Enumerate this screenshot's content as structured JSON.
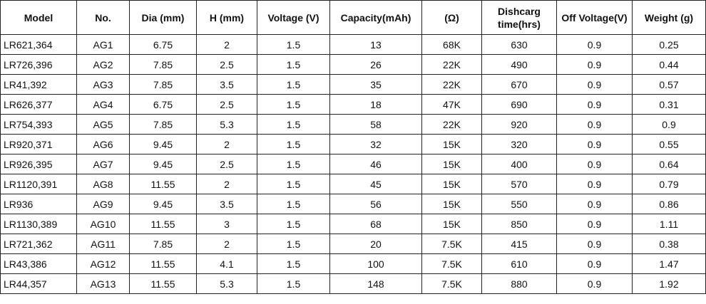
{
  "table": {
    "headers": [
      "Model",
      "No.",
      "Dia (mm)",
      "H (mm)",
      "Voltage (V)",
      "Capacity(mAh)",
      "(Ω)",
      "Dishcarg time(hrs)",
      "Off Voltage(V)",
      "Weight (g)"
    ],
    "rows": [
      [
        "LR621,364",
        "AG1",
        "6.75",
        "2",
        "1.5",
        "13",
        "68K",
        "630",
        "0.9",
        "0.25"
      ],
      [
        "LR726,396",
        "AG2",
        "7.85",
        "2.5",
        "1.5",
        "26",
        "22K",
        "490",
        "0.9",
        "0.44"
      ],
      [
        "LR41,392",
        "AG3",
        "7.85",
        "3.5",
        "1.5",
        "35",
        "22K",
        "670",
        "0.9",
        "0.57"
      ],
      [
        "LR626,377",
        "AG4",
        "6.75",
        "2.5",
        "1.5",
        "18",
        "47K",
        "690",
        "0.9",
        "0.31"
      ],
      [
        "LR754,393",
        "AG5",
        "7.85",
        "5.3",
        "1.5",
        "58",
        "22K",
        "920",
        "0.9",
        "0.9"
      ],
      [
        "LR920,371",
        "AG6",
        "9.45",
        "2",
        "1.5",
        "32",
        "15K",
        "320",
        "0.9",
        "0.55"
      ],
      [
        "LR926,395",
        "AG7",
        "9.45",
        "2.5",
        "1.5",
        "46",
        "15K",
        "400",
        "0.9",
        "0.64"
      ],
      [
        "LR1120,391",
        "AG8",
        "11.55",
        "2",
        "1.5",
        "45",
        "15K",
        "570",
        "0.9",
        "0.79"
      ],
      [
        "LR936",
        "AG9",
        "9.45",
        "3.5",
        "1.5",
        "56",
        "15K",
        "550",
        "0.9",
        "0.86"
      ],
      [
        "LR1130,389",
        "AG10",
        "11.55",
        "3",
        "1.5",
        "68",
        "15K",
        "850",
        "0.9",
        "1.11"
      ],
      [
        "LR721,362",
        "AG11",
        "7.85",
        "2",
        "1.5",
        "20",
        "7.5K",
        "415",
        "0.9",
        "0.38"
      ],
      [
        "LR43,386",
        "AG12",
        "11.55",
        "4.1",
        "1.5",
        "100",
        "7.5K",
        "610",
        "0.9",
        "1.47"
      ],
      [
        "LR44,357",
        "AG13",
        "11.55",
        "5.3",
        "1.5",
        "148",
        "7.5K",
        "880",
        "0.9",
        "1.92"
      ]
    ]
  }
}
